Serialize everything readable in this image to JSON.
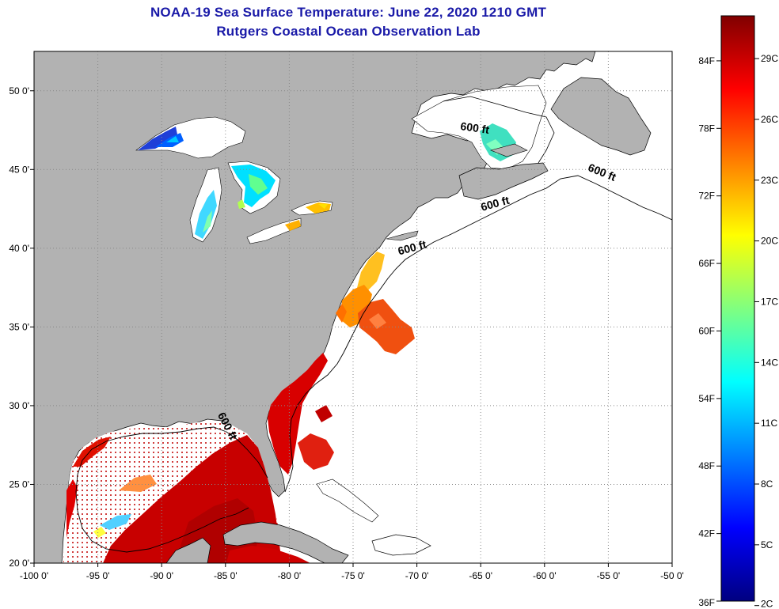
{
  "header": {
    "title": "NOAA-19 Sea Surface Temperature:  June 22, 2020 1210 GMT",
    "subtitle": "Rutgers Coastal Ocean Observation Lab"
  },
  "map": {
    "lon_range": [
      -100,
      -50
    ],
    "lat_range": [
      20,
      52.5
    ],
    "lon_ticks": [
      {
        "value": -100,
        "label": "-100 0'"
      },
      {
        "value": -95,
        "label": "-95 0'"
      },
      {
        "value": -90,
        "label": "-90 0'"
      },
      {
        "value": -85,
        "label": "-85 0'"
      },
      {
        "value": -80,
        "label": "-80 0'"
      },
      {
        "value": -75,
        "label": "-75 0'"
      },
      {
        "value": -70,
        "label": "-70 0'"
      },
      {
        "value": -65,
        "label": "-65 0'"
      },
      {
        "value": -60,
        "label": "-60 0'"
      },
      {
        "value": -55,
        "label": "-55 0'"
      },
      {
        "value": -50,
        "label": "-50 0'"
      }
    ],
    "lat_ticks": [
      {
        "value": 20,
        "label": "20 0'"
      },
      {
        "value": 25,
        "label": "25 0'"
      },
      {
        "value": 30,
        "label": "30 0'"
      },
      {
        "value": 35,
        "label": "35 0'"
      },
      {
        "value": 40,
        "label": "40 0'"
      },
      {
        "value": 45,
        "label": "45 0'"
      },
      {
        "value": 50,
        "label": "50 0'"
      }
    ],
    "contour_labels": [
      {
        "text": "600 ft",
        "lon": -65.5,
        "lat": 47.4,
        "rot": 8
      },
      {
        "text": "600 ft",
        "lon": -55.6,
        "lat": 44.6,
        "rot": 22
      },
      {
        "text": "600 ft",
        "lon": -63.8,
        "lat": 42.6,
        "rot": -15
      },
      {
        "text": "600 ft",
        "lon": -70.3,
        "lat": 39.8,
        "rot": -15
      },
      {
        "text": "600 ft",
        "lon": -85.1,
        "lat": 28.6,
        "rot": 62
      }
    ],
    "colors": {
      "land": "#b2b2b2",
      "ocean": "#ffffff",
      "grid": "#888888"
    }
  },
  "colorbar": {
    "f_labels": [
      {
        "value": 36,
        "label": "36F"
      },
      {
        "value": 42,
        "label": "42F"
      },
      {
        "value": 48,
        "label": "48F"
      },
      {
        "value": 54,
        "label": "54F"
      },
      {
        "value": 60,
        "label": "60F"
      },
      {
        "value": 66,
        "label": "66F"
      },
      {
        "value": 72,
        "label": "72F"
      },
      {
        "value": 78,
        "label": "78F"
      },
      {
        "value": 84,
        "label": "84F"
      }
    ],
    "c_labels": [
      {
        "value": 2,
        "label": "2C"
      },
      {
        "value": 5,
        "label": "5C"
      },
      {
        "value": 8,
        "label": "8C"
      },
      {
        "value": 11,
        "label": "11C"
      },
      {
        "value": 14,
        "label": "14C"
      },
      {
        "value": 17,
        "label": "17C"
      },
      {
        "value": 20,
        "label": "20C"
      },
      {
        "value": 23,
        "label": "23C"
      },
      {
        "value": 26,
        "label": "26C"
      },
      {
        "value": 29,
        "label": "29C"
      }
    ],
    "stops": [
      "#000080",
      "#0000ff",
      "#0080ff",
      "#00ffff",
      "#80ff80",
      "#ffff00",
      "#ff8000",
      "#ff0000",
      "#800000"
    ]
  }
}
